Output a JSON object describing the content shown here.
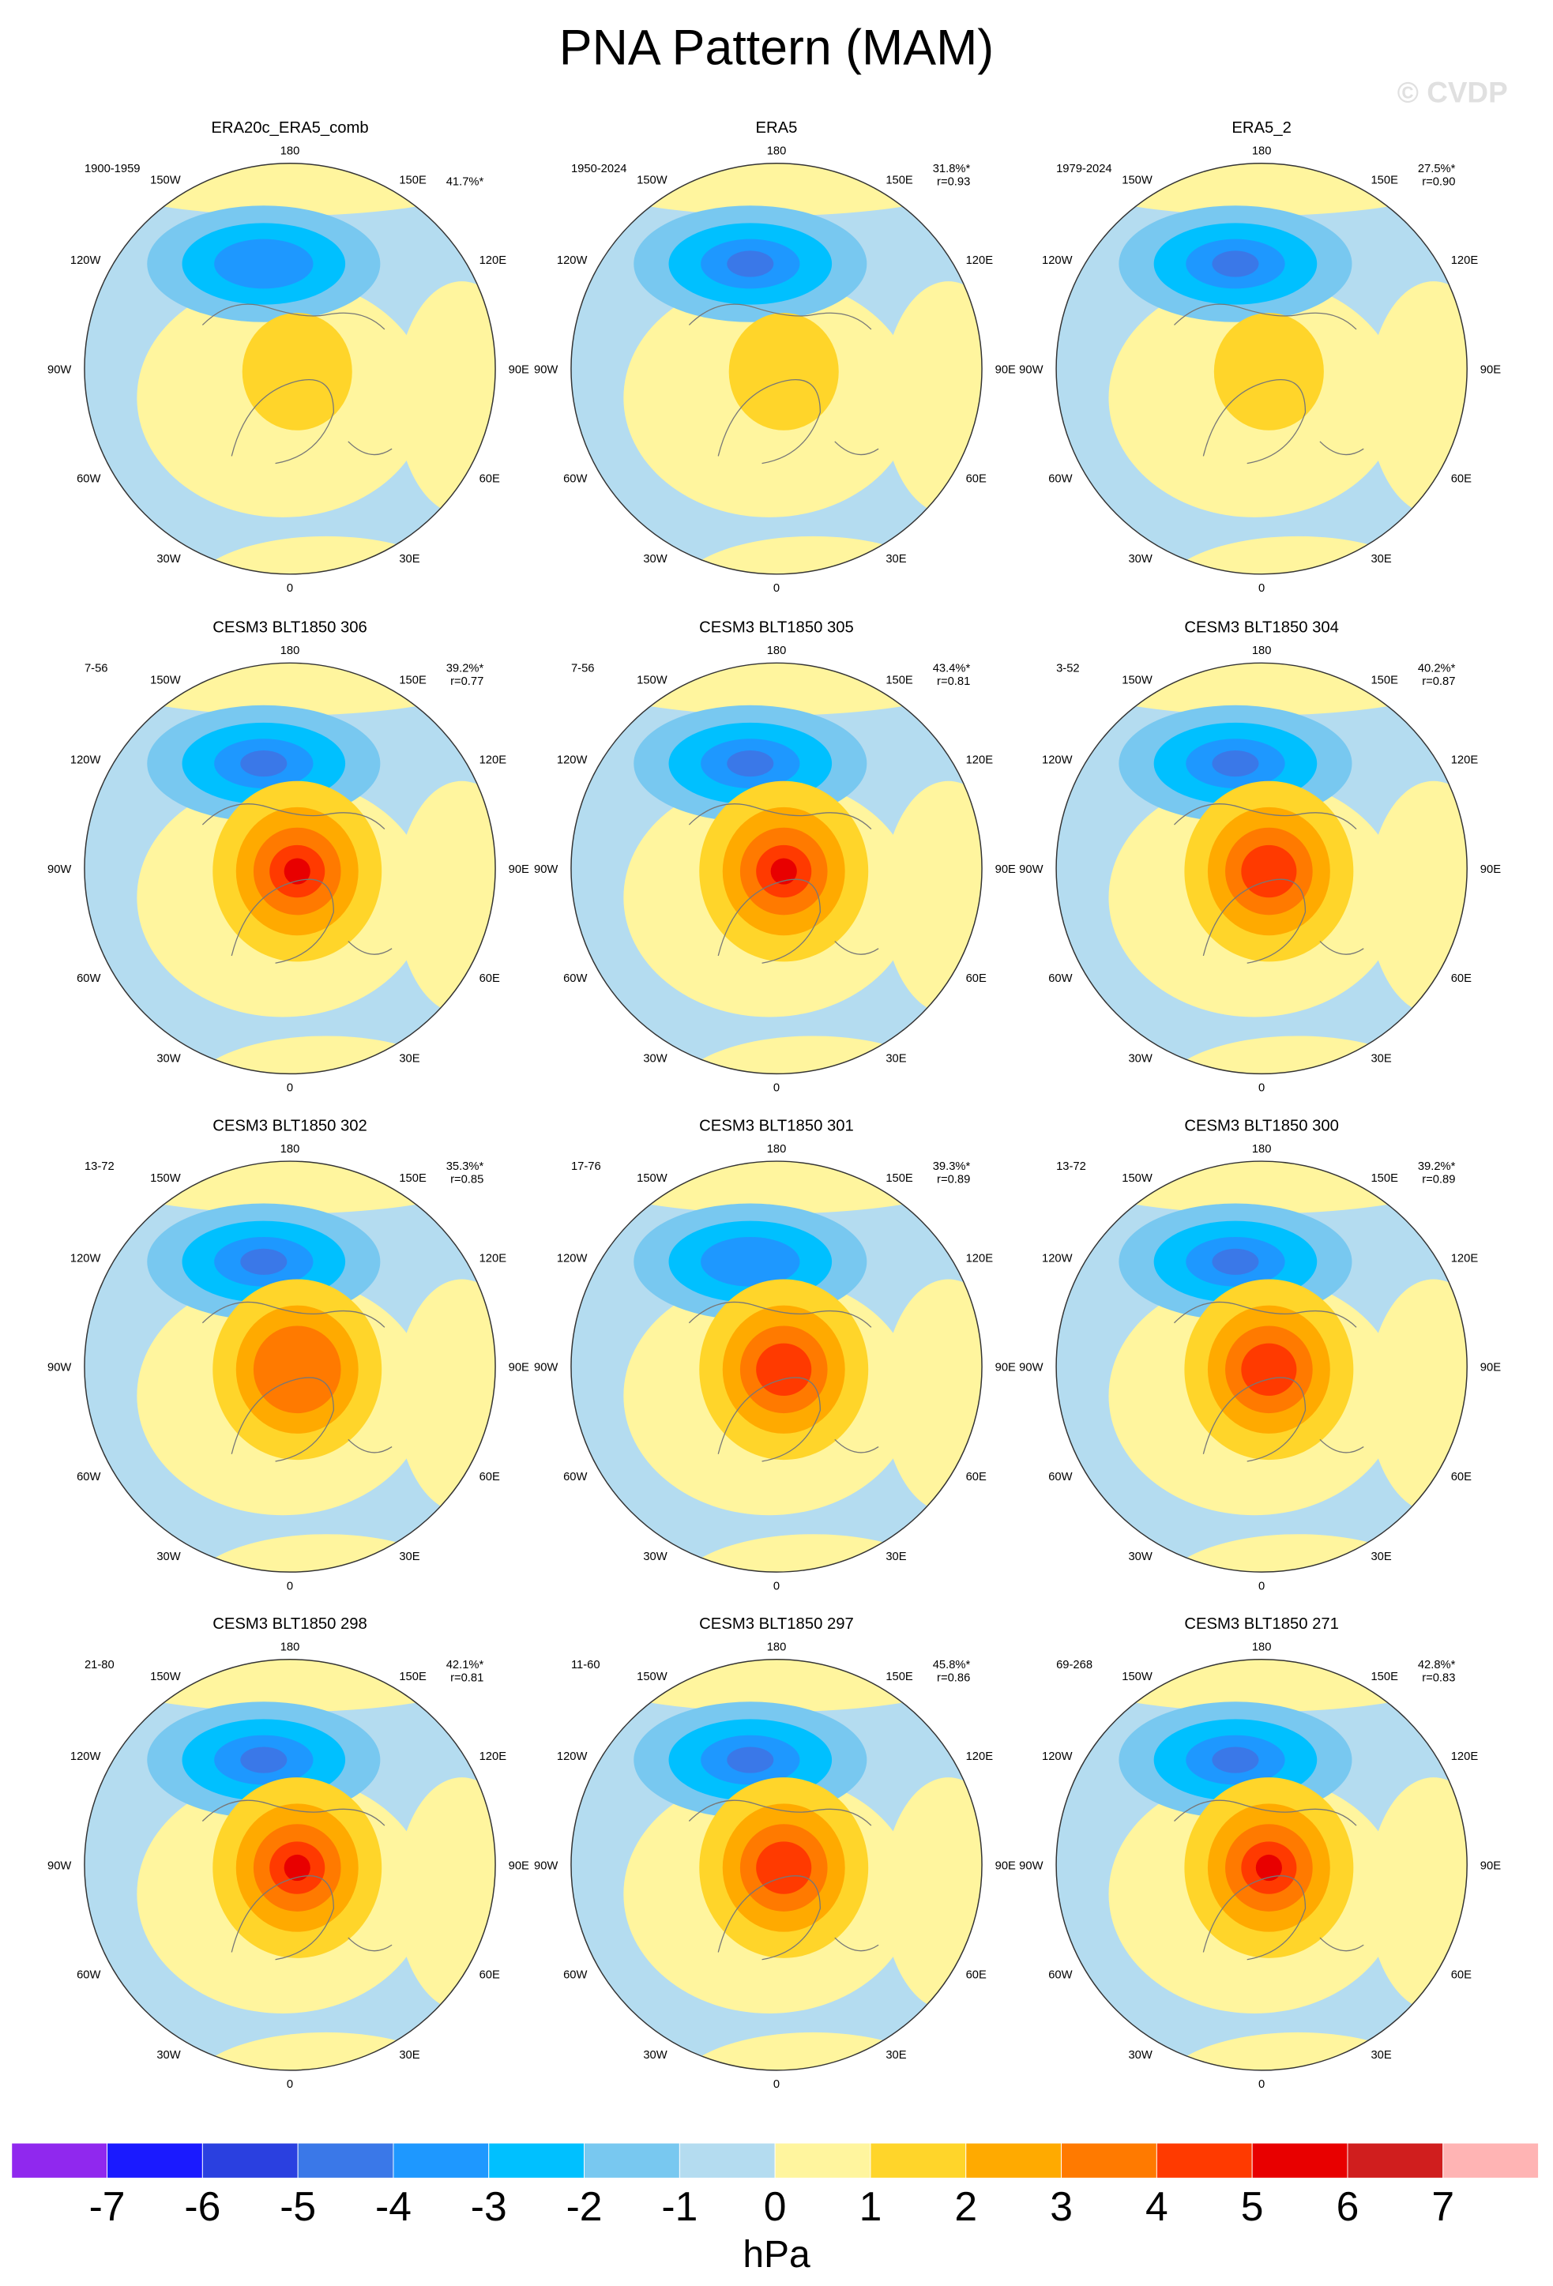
{
  "title": "PNA Pattern (MAM)",
  "watermark": "© CVDP",
  "lon_labels": [
    "180",
    "150E",
    "120E",
    "90E",
    "60E",
    "30E",
    "0",
    "30W",
    "60W",
    "90W",
    "120W",
    "150W"
  ],
  "panels": [
    {
      "title": "ERA20c_ERA5_comb",
      "period": "1900-1959",
      "pct": "41.7%*"
    },
    {
      "title": "ERA5",
      "period": "1950-2024",
      "pct": "31.8%*",
      "r": "r=0.93"
    },
    {
      "title": "ERA5_2",
      "period": "1979-2024",
      "pct": "27.5%*",
      "r": "r=0.90"
    },
    {
      "title": "CESM3 BLT1850 306",
      "period": "7-56",
      "pct": "39.2%*",
      "r": "r=0.77"
    },
    {
      "title": "CESM3 BLT1850 305",
      "period": "7-56",
      "pct": "43.4%*",
      "r": "r=0.81"
    },
    {
      "title": "CESM3 BLT1850 304",
      "period": "3-52",
      "pct": "40.2%*",
      "r": "r=0.87"
    },
    {
      "title": "CESM3 BLT1850 302",
      "period": "13-72",
      "pct": "35.3%*",
      "r": "r=0.85"
    },
    {
      "title": "CESM3 BLT1850 301",
      "period": "17-76",
      "pct": "39.3%*",
      "r": "r=0.89"
    },
    {
      "title": "CESM3 BLT1850 300",
      "period": "13-72",
      "pct": "39.2%*",
      "r": "r=0.89"
    },
    {
      "title": "CESM3 BLT1850 298",
      "period": "21-80",
      "pct": "42.1%*",
      "r": "r=0.81"
    },
    {
      "title": "CESM3 BLT1850 297",
      "period": "11-60",
      "pct": "45.8%*",
      "r": "r=0.86"
    },
    {
      "title": "CESM3 BLT1850 271",
      "period": "69-268",
      "pct": "42.8%*",
      "r": "r=0.83"
    }
  ],
  "colorbar": {
    "colors": [
      "#9028ee",
      "#1a1aff",
      "#2a40e0",
      "#3a78e8",
      "#1e98ff",
      "#00c0ff",
      "#78c8f0",
      "#b4dcf0",
      "#fff59e",
      "#ffd52a",
      "#ffaa00",
      "#ff7a00",
      "#ff3a00",
      "#e80000",
      "#d01e1e",
      "#ffb4b4"
    ],
    "ticks": [
      -7,
      -6,
      -5,
      -4,
      -3,
      -2,
      -1,
      0,
      1,
      2,
      3,
      4,
      5,
      6,
      7
    ],
    "unit": "hPa"
  }
}
